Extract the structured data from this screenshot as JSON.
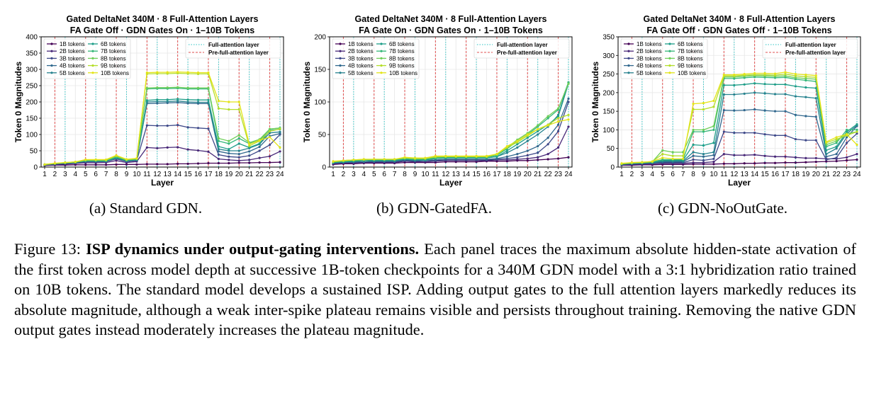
{
  "figure": {
    "caption_label": "Figure 13:",
    "caption_bold": "ISP dynamics under output-gating interventions.",
    "caption_text": "Each panel traces the maximum absolute hidden-state activation of the first token across model depth at successive 1B-token checkpoints for a 340M GDN model with a 3:1 hybridization ratio trained on 10B tokens. The standard model develops a sustained ISP. Adding output gates to the full attention layers markedly reduces its absolute magnitude, although a weak inter-spike plateau remains visible and persists throughout training. Removing the native GDN output gates instead moderately increases the plateau magnitude."
  },
  "colors": {
    "series": [
      "#440154",
      "#482878",
      "#3e4989",
      "#31688e",
      "#26828e",
      "#1f9e89",
      "#35b779",
      "#6ece58",
      "#b5de2b",
      "#e3e418"
    ],
    "full_attention": "#2ec4c4",
    "pre_full_attention": "#e05050",
    "grid": "#e6e6e6"
  },
  "chart_data": [
    {
      "type": "line",
      "subcaption": "(a) Standard GDN.",
      "title_line1": "Gated DeltaNet 340M · 8 Full-Attention Layers",
      "title_line2": "FA Gate Off · GDN Gates On · 1–10B Tokens",
      "xlabel": "Layer",
      "ylabel": "Token 0 Magnitudes",
      "ylim": [
        0,
        400
      ],
      "yticks": [
        0,
        50,
        100,
        150,
        200,
        250,
        300,
        350,
        400
      ],
      "x": [
        1,
        2,
        3,
        4,
        5,
        6,
        7,
        8,
        9,
        10,
        11,
        12,
        13,
        14,
        15,
        16,
        17,
        18,
        19,
        20,
        21,
        22,
        23,
        24
      ],
      "full_attention_layers": [
        3,
        6,
        9,
        12,
        15,
        18,
        21,
        24
      ],
      "pre_full_attention_layers": [
        2,
        5,
        8,
        11,
        14,
        17,
        20,
        23
      ],
      "legend_reference": [
        "Full-attention layer",
        "Pre-full-attention layer"
      ],
      "series": [
        {
          "name": "1B tokens",
          "values": [
            5,
            6,
            6,
            7,
            7,
            7,
            7,
            8,
            8,
            8,
            9,
            9,
            9,
            10,
            10,
            11,
            12,
            12,
            12,
            13,
            13,
            14,
            14,
            15
          ]
        },
        {
          "name": "2B tokens",
          "values": [
            6,
            7,
            9,
            11,
            13,
            13,
            14,
            20,
            14,
            17,
            60,
            58,
            60,
            61,
            54,
            51,
            47,
            25,
            22,
            20,
            22,
            28,
            33,
            48
          ]
        },
        {
          "name": "3B tokens",
          "values": [
            7,
            9,
            11,
            13,
            16,
            16,
            17,
            25,
            17,
            20,
            128,
            127,
            127,
            129,
            122,
            120,
            118,
            38,
            32,
            30,
            35,
            50,
            68,
            100
          ]
        },
        {
          "name": "4B tokens",
          "values": [
            7,
            10,
            12,
            14,
            18,
            18,
            18,
            27,
            19,
            22,
            195,
            196,
            197,
            198,
            196,
            195,
            195,
            48,
            42,
            40,
            48,
            62,
            95,
            103
          ]
        },
        {
          "name": "5B tokens",
          "values": [
            7,
            10,
            12,
            14,
            18,
            18,
            18,
            28,
            19,
            22,
            200,
            201,
            201,
            203,
            200,
            199,
            199,
            55,
            50,
            50,
            58,
            70,
            105,
            108
          ]
        },
        {
          "name": "6B tokens",
          "values": [
            7,
            10,
            12,
            14,
            19,
            19,
            19,
            29,
            20,
            23,
            205,
            207,
            207,
            209,
            207,
            206,
            206,
            63,
            55,
            72,
            60,
            72,
            112,
            116
          ]
        },
        {
          "name": "7B tokens",
          "values": [
            8,
            11,
            13,
            15,
            20,
            20,
            20,
            31,
            21,
            24,
            240,
            241,
            241,
            242,
            240,
            240,
            240,
            80,
            72,
            88,
            72,
            82,
            116,
            120
          ]
        },
        {
          "name": "8B tokens",
          "values": [
            8,
            11,
            13,
            15,
            21,
            21,
            21,
            33,
            22,
            25,
            243,
            244,
            244,
            245,
            243,
            243,
            243,
            88,
            80,
            98,
            75,
            85,
            117,
            120
          ]
        },
        {
          "name": "9B tokens",
          "values": [
            8,
            11,
            14,
            16,
            22,
            22,
            22,
            35,
            23,
            26,
            286,
            287,
            287,
            288,
            287,
            286,
            286,
            180,
            177,
            177,
            65,
            80,
            110,
            117
          ]
        },
        {
          "name": "10B tokens",
          "values": [
            8,
            12,
            14,
            16,
            23,
            23,
            23,
            36,
            24,
            27,
            290,
            291,
            291,
            292,
            291,
            290,
            290,
            203,
            200,
            200,
            70,
            82,
            92,
            60
          ]
        }
      ]
    },
    {
      "type": "line",
      "subcaption": "(b) GDN-GatedFA.",
      "title_line1": "Gated DeltaNet 340M · 8 Full-Attention Layers",
      "title_line2": "FA Gate On · GDN Gates On · 1–10B Tokens",
      "xlabel": "Layer",
      "ylabel": "Token 0 Magnitudes",
      "ylim": [
        0,
        200
      ],
      "yticks": [
        0,
        50,
        100,
        150,
        200
      ],
      "x": [
        1,
        2,
        3,
        4,
        5,
        6,
        7,
        8,
        9,
        10,
        11,
        12,
        13,
        14,
        15,
        16,
        17,
        18,
        19,
        20,
        21,
        22,
        23,
        24
      ],
      "full_attention_layers": [
        3,
        6,
        9,
        12,
        15,
        18,
        21,
        24
      ],
      "pre_full_attention_layers": [
        2,
        5,
        8,
        11,
        14,
        17,
        20,
        23
      ],
      "legend_reference": [
        "Full-attention layer",
        "Pre-full-attention layer"
      ],
      "series": [
        {
          "name": "1B tokens",
          "values": [
            4,
            5,
            5,
            6,
            6,
            6,
            6,
            7,
            7,
            7,
            7,
            8,
            8,
            8,
            8,
            9,
            9,
            9,
            10,
            10,
            11,
            12,
            13,
            15
          ]
        },
        {
          "name": "2B tokens",
          "values": [
            5,
            6,
            6,
            7,
            7,
            7,
            7,
            9,
            8,
            8,
            9,
            10,
            10,
            10,
            10,
            10,
            11,
            11,
            12,
            13,
            15,
            20,
            30,
            62
          ]
        },
        {
          "name": "3B tokens",
          "values": [
            6,
            7,
            7,
            8,
            8,
            8,
            8,
            10,
            9,
            10,
            10,
            11,
            11,
            11,
            11,
            11,
            12,
            13,
            15,
            18,
            22,
            35,
            55,
            100
          ]
        },
        {
          "name": "4B tokens",
          "values": [
            6,
            7,
            8,
            8,
            9,
            9,
            9,
            11,
            10,
            10,
            11,
            12,
            12,
            12,
            12,
            12,
            13,
            16,
            20,
            25,
            32,
            45,
            65,
            105
          ]
        },
        {
          "name": "5B tokens",
          "values": [
            7,
            8,
            9,
            10,
            10,
            10,
            10,
            12,
            11,
            11,
            13,
            14,
            14,
            14,
            14,
            14,
            16,
            22,
            30,
            40,
            50,
            62,
            80,
            130
          ]
        },
        {
          "name": "6B tokens",
          "values": [
            7,
            8,
            9,
            10,
            10,
            10,
            10,
            12,
            11,
            11,
            13,
            14,
            14,
            14,
            14,
            14,
            16,
            25,
            35,
            45,
            55,
            65,
            78,
            128
          ]
        },
        {
          "name": "7B tokens",
          "values": [
            8,
            9,
            10,
            11,
            11,
            11,
            11,
            13,
            12,
            12,
            14,
            15,
            15,
            15,
            15,
            15,
            18,
            28,
            40,
            50,
            62,
            75,
            88,
            130
          ]
        },
        {
          "name": "8B tokens",
          "values": [
            8,
            10,
            11,
            11,
            12,
            12,
            12,
            14,
            13,
            13,
            15,
            16,
            16,
            16,
            16,
            16,
            19,
            30,
            42,
            52,
            64,
            78,
            90,
            128
          ]
        },
        {
          "name": "9B tokens",
          "values": [
            8,
            10,
            11,
            12,
            12,
            12,
            12,
            14,
            13,
            13,
            16,
            16,
            16,
            16,
            16,
            16,
            20,
            30,
            38,
            48,
            58,
            65,
            75,
            80
          ]
        },
        {
          "name": "10B tokens",
          "values": [
            9,
            10,
            11,
            12,
            12,
            12,
            12,
            15,
            14,
            14,
            17,
            17,
            17,
            17,
            17,
            17,
            20,
            32,
            40,
            50,
            58,
            64,
            70,
            73
          ]
        }
      ]
    },
    {
      "type": "line",
      "subcaption": "(c) GDN-NoOutGate.",
      "title_line1": "Gated DeltaNet 340M · 8 Full-Attention Layers",
      "title_line2": "FA Gate Off · GDN Gates Off · 1–10B Tokens",
      "xlabel": "Layer",
      "ylabel": "Token 0 Magnitudes",
      "ylim": [
        0,
        350
      ],
      "yticks": [
        0,
        50,
        100,
        150,
        200,
        250,
        300,
        350
      ],
      "x": [
        1,
        2,
        3,
        4,
        5,
        6,
        7,
        8,
        9,
        10,
        11,
        12,
        13,
        14,
        15,
        16,
        17,
        18,
        19,
        20,
        21,
        22,
        23,
        24
      ],
      "full_attention_layers": [
        3,
        6,
        9,
        12,
        15,
        18,
        21,
        24
      ],
      "pre_full_attention_layers": [
        2,
        5,
        8,
        11,
        14,
        17,
        20,
        23
      ],
      "legend_reference": [
        "Full-attention layer",
        "Pre-full-attention layer"
      ],
      "series": [
        {
          "name": "1B tokens",
          "values": [
            5,
            5,
            6,
            6,
            7,
            7,
            7,
            8,
            8,
            8,
            9,
            9,
            10,
            10,
            11,
            11,
            12,
            12,
            13,
            14,
            15,
            16,
            18,
            20
          ]
        },
        {
          "name": "2B tokens",
          "values": [
            6,
            7,
            8,
            9,
            10,
            10,
            10,
            12,
            12,
            14,
            35,
            32,
            32,
            33,
            30,
            28,
            28,
            26,
            24,
            24,
            22,
            22,
            26,
            35
          ]
        },
        {
          "name": "3B tokens",
          "values": [
            7,
            8,
            9,
            10,
            12,
            12,
            12,
            20,
            18,
            22,
            95,
            92,
            92,
            92,
            88,
            85,
            85,
            75,
            72,
            72,
            20,
            25,
            65,
            90
          ]
        },
        {
          "name": "4B tokens",
          "values": [
            7,
            9,
            10,
            11,
            14,
            14,
            14,
            30,
            28,
            32,
            153,
            152,
            153,
            155,
            152,
            150,
            150,
            140,
            137,
            135,
            28,
            35,
            80,
            110
          ]
        },
        {
          "name": "5B tokens",
          "values": [
            8,
            10,
            11,
            12,
            16,
            16,
            16,
            40,
            35,
            40,
            195,
            195,
            197,
            200,
            198,
            196,
            196,
            190,
            188,
            185,
            35,
            50,
            90,
            112
          ]
        },
        {
          "name": "6B tokens",
          "values": [
            8,
            10,
            11,
            13,
            18,
            18,
            18,
            60,
            58,
            65,
            220,
            220,
            222,
            225,
            223,
            222,
            222,
            217,
            214,
            212,
            45,
            55,
            95,
            115
          ]
        },
        {
          "name": "7B tokens",
          "values": [
            8,
            11,
            12,
            14,
            20,
            20,
            20,
            95,
            95,
            100,
            238,
            238,
            240,
            242,
            241,
            240,
            241,
            236,
            233,
            230,
            55,
            65,
            100,
            100
          ]
        },
        {
          "name": "8B tokens",
          "values": [
            9,
            11,
            12,
            14,
            45,
            40,
            40,
            100,
            100,
            110,
            242,
            242,
            244,
            246,
            245,
            244,
            245,
            240,
            238,
            236,
            60,
            70,
            90,
            95
          ]
        },
        {
          "name": "9B tokens",
          "values": [
            9,
            12,
            13,
            15,
            35,
            30,
            30,
            155,
            155,
            162,
            245,
            245,
            247,
            248,
            248,
            247,
            250,
            245,
            243,
            241,
            65,
            75,
            85,
            95
          ]
        },
        {
          "name": "10B tokens",
          "values": [
            10,
            12,
            13,
            15,
            25,
            22,
            22,
            170,
            172,
            178,
            248,
            248,
            250,
            252,
            252,
            251,
            255,
            250,
            248,
            246,
            68,
            80,
            88,
            60
          ]
        }
      ]
    }
  ]
}
